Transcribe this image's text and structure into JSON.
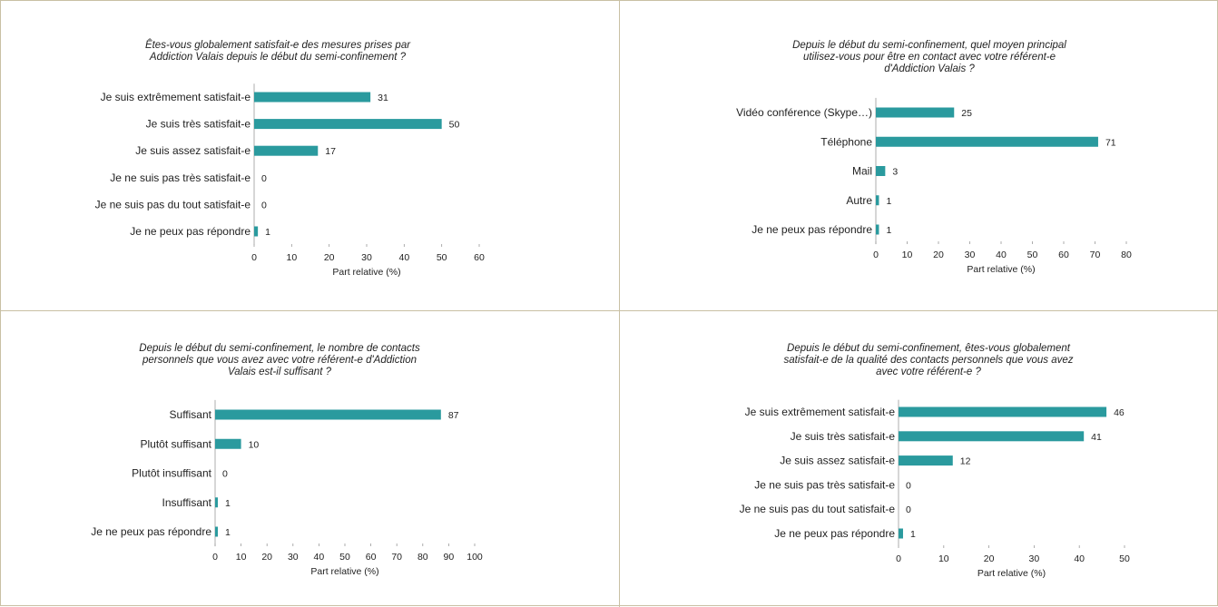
{
  "chart_data": [
    {
      "type": "bar",
      "orientation": "horizontal",
      "title": [
        "Êtes-vous globalement satisfait-e des mesures prises par",
        "Addiction Valais depuis le début du semi-confinement ?"
      ],
      "categories": [
        "Je suis extrêmement satisfait-e",
        "Je suis très satisfait-e",
        "Je suis assez satisfait-e",
        "Je ne suis pas très satisfait-e",
        "Je ne suis pas du tout satisfait-e",
        "Je ne peux pas répondre"
      ],
      "values": [
        31,
        50,
        17,
        0,
        0,
        1
      ],
      "xlabel": "Part relative (%)",
      "xlim": [
        0,
        60
      ],
      "xticks": [
        0,
        10,
        20,
        30,
        40,
        50,
        60
      ],
      "color": "#2a9a9e",
      "grid": false
    },
    {
      "type": "bar",
      "orientation": "horizontal",
      "title": [
        "Depuis le début du semi-confinement, quel moyen principal",
        "utilisez-vous pour être en contact avec votre référent-e",
        "d'Addiction Valais ?"
      ],
      "categories": [
        "Vidéo conférence (Skype…)",
        "Téléphone",
        "Mail",
        "Autre",
        "Je ne peux pas répondre"
      ],
      "values": [
        25,
        71,
        3,
        1,
        1
      ],
      "xlabel": "Part relative (%)",
      "xlim": [
        0,
        80
      ],
      "xticks": [
        0,
        10,
        20,
        30,
        40,
        50,
        60,
        70,
        80
      ],
      "color": "#2a9a9e",
      "grid": false
    },
    {
      "type": "bar",
      "orientation": "horizontal",
      "title": [
        "Depuis le début du semi-confinement, le nombre de contacts",
        "personnels que vous avez avec votre référent-e d'Addiction",
        "Valais est-il suffisant ?"
      ],
      "categories": [
        "Suffisant",
        "Plutôt suffisant",
        "Plutôt insuffisant",
        "Insuffisant",
        "Je ne peux pas répondre"
      ],
      "values": [
        87,
        10,
        0,
        1,
        1
      ],
      "xlabel": "Part relative (%)",
      "xlim": [
        0,
        100
      ],
      "xticks": [
        0,
        10,
        20,
        30,
        40,
        50,
        60,
        70,
        80,
        90,
        100
      ],
      "color": "#2a9a9e",
      "grid": false
    },
    {
      "type": "bar",
      "orientation": "horizontal",
      "title": [
        "Depuis le début du semi-confinement, êtes-vous globalement",
        "satisfait-e de la qualité des contacts personnels que vous avez",
        "avec votre référent-e ?"
      ],
      "categories": [
        "Je suis extrêmement satisfait-e",
        "Je suis très satisfait-e",
        "Je suis assez satisfait-e",
        "Je ne suis pas très satisfait-e",
        "Je ne suis pas du tout satisfait-e",
        "Je ne peux pas répondre"
      ],
      "values": [
        46,
        41,
        12,
        0,
        0,
        1
      ],
      "xlabel": "Part relative (%)",
      "xlim": [
        0,
        50
      ],
      "xticks": [
        0,
        10,
        20,
        30,
        40,
        50
      ],
      "color": "#2a9a9e",
      "grid": false
    }
  ]
}
